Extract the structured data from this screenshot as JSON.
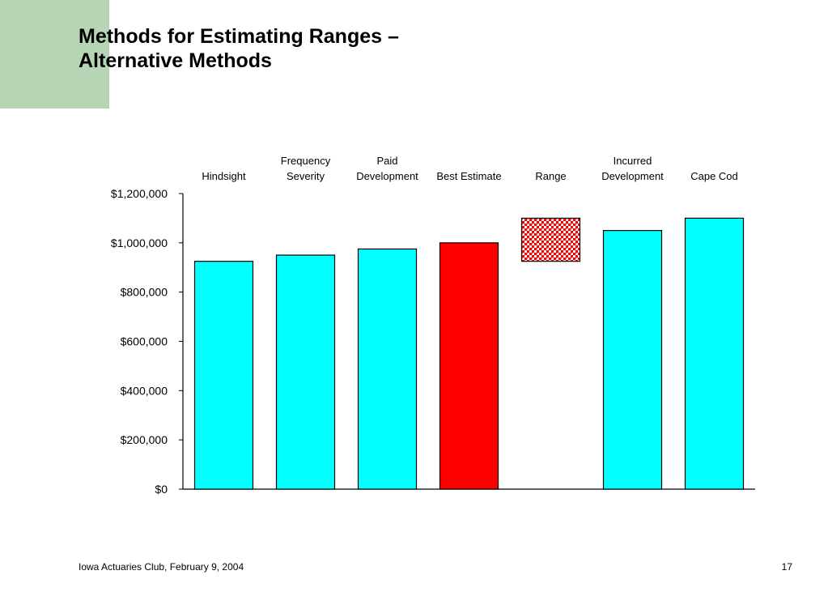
{
  "slide": {
    "title_line1": "Methods for Estimating Ranges –",
    "title_line2": "Alternative Methods",
    "footer": "Iowa Actuaries Club, February 9, 2004",
    "page_number": "17",
    "accent_color": "#b5d5b5"
  },
  "chart_data": {
    "type": "bar",
    "categories": [
      [
        "Hindsight"
      ],
      [
        "Frequency",
        "Severity"
      ],
      [
        "Paid",
        "Development"
      ],
      [
        "Best Estimate"
      ],
      [
        "Range"
      ],
      [
        "Incurred",
        "Development"
      ],
      [
        "Cape Cod"
      ]
    ],
    "values": [
      925000,
      950000,
      975000,
      1000000,
      null,
      1050000,
      1100000
    ],
    "range": {
      "low": 925000,
      "high": 1100000
    },
    "colors": [
      "#00ffff",
      "#00ffff",
      "#00ffff",
      "#ff0000",
      "#ff0000",
      "#00ffff",
      "#00ffff"
    ],
    "range_fill": "#ff0000",
    "ylim": [
      0,
      1200000
    ],
    "yticks": [
      0,
      200000,
      400000,
      600000,
      800000,
      1000000,
      1200000
    ],
    "ytick_labels": [
      "$0",
      "$200,000",
      "$400,000",
      "$600,000",
      "$800,000",
      "$1,000,000",
      "$1,200,000"
    ],
    "category_labels_position": "top",
    "grid": false,
    "legend": "none"
  }
}
